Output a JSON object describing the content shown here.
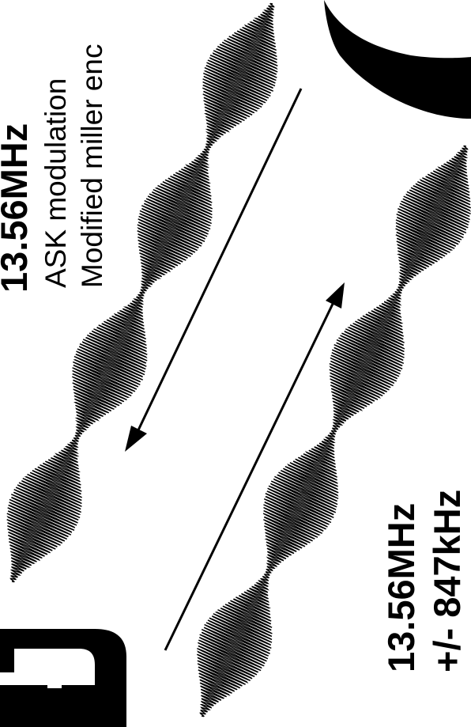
{
  "reader_to_card": {
    "frequency": "13.56MHz",
    "modulation": "ASK modulation",
    "encoding": "Modified miller enc"
  },
  "card_to_reader": {
    "frequency": "13.56MHz",
    "deviation": "+/- 847kHz"
  },
  "colors": {
    "ink": "#000000",
    "background": "#ffffff"
  }
}
